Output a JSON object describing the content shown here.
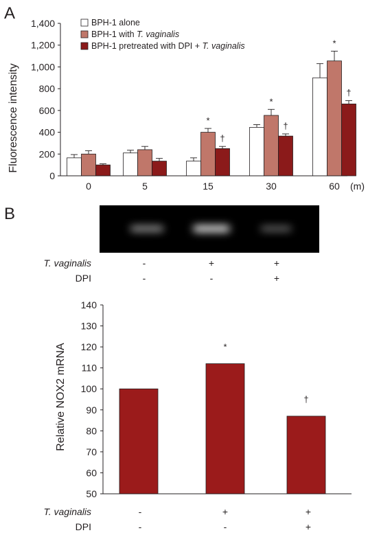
{
  "panel_a": {
    "label": "A",
    "chart_data": {
      "type": "bar",
      "categories": [
        "0",
        "5",
        "15",
        "30",
        "60"
      ],
      "x_unit": "(m)",
      "ylabel": "Fluorescence intensity",
      "ylim": [
        0,
        1400
      ],
      "yticks": [
        "0",
        "200",
        "400",
        "600",
        "800",
        "1,000",
        "1,200",
        "1,400"
      ],
      "ytick_values": [
        0,
        200,
        400,
        600,
        800,
        1000,
        1200,
        1400
      ],
      "grid": false,
      "legend_position": "top-left",
      "series": [
        {
          "name": "BPH-1 alone",
          "name_plain": "BPH-1 alone",
          "name_italic": "",
          "name_after": "",
          "color": "#ffffff",
          "values": [
            165,
            210,
            135,
            445,
            900
          ],
          "errors": [
            30,
            25,
            30,
            25,
            130
          ]
        },
        {
          "name": "BPH-1 with T. vaginalis",
          "name_plain": "BPH-1 with ",
          "name_italic": "T. vaginalis",
          "name_after": "",
          "color": "#c0776a",
          "values": [
            200,
            240,
            400,
            555,
            1055
          ],
          "errors": [
            30,
            30,
            35,
            55,
            90
          ]
        },
        {
          "name": "BPH-1 pretreated with DPI + T. vaginalis",
          "name_plain": "BPH-1 pretreated with DPI + ",
          "name_italic": "T. vaginalis",
          "name_after": "",
          "color": "#8b1a1a",
          "values": [
            100,
            135,
            250,
            365,
            660
          ],
          "errors": [
            10,
            25,
            20,
            20,
            30
          ]
        }
      ],
      "annotations": [
        {
          "category": "15",
          "series": 1,
          "text": "*"
        },
        {
          "category": "15",
          "series": 2,
          "text": "†"
        },
        {
          "category": "30",
          "series": 1,
          "text": "*"
        },
        {
          "category": "30",
          "series": 2,
          "text": "†"
        },
        {
          "category": "60",
          "series": 1,
          "text": "*"
        },
        {
          "category": "60",
          "series": 2,
          "text": "†"
        }
      ]
    }
  },
  "panel_b": {
    "label": "B",
    "gel": {
      "background": "#000000",
      "bands": [
        0.6,
        1.0,
        0.35
      ]
    },
    "gel_conditions": {
      "rows": [
        {
          "label": "T. vaginalis",
          "italic": true,
          "values": [
            "-",
            "+",
            "+"
          ]
        },
        {
          "label": "DPI",
          "italic": false,
          "values": [
            "-",
            "-",
            "+"
          ]
        }
      ]
    },
    "chart_data": {
      "type": "bar",
      "categories": [
        "1",
        "2",
        "3"
      ],
      "values": [
        100,
        112,
        87
      ],
      "ylabel": "Relative NOX2 mRNA",
      "ylim": [
        50,
        140
      ],
      "yticks": [
        "50",
        "60",
        "70",
        "80",
        "90",
        "100",
        "110",
        "120",
        "130",
        "140"
      ],
      "ytick_values": [
        50,
        60,
        70,
        80,
        90,
        100,
        110,
        120,
        130,
        140
      ],
      "grid": false,
      "bar_color": "#9b1b1b",
      "annotations": [
        "",
        "*",
        "†"
      ]
    },
    "conditions": {
      "rows": [
        {
          "label": "T. vaginalis",
          "italic": true,
          "values": [
            "-",
            "+",
            "+"
          ]
        },
        {
          "label": "DPI",
          "italic": false,
          "values": [
            "-",
            "-",
            "+"
          ]
        }
      ]
    }
  }
}
